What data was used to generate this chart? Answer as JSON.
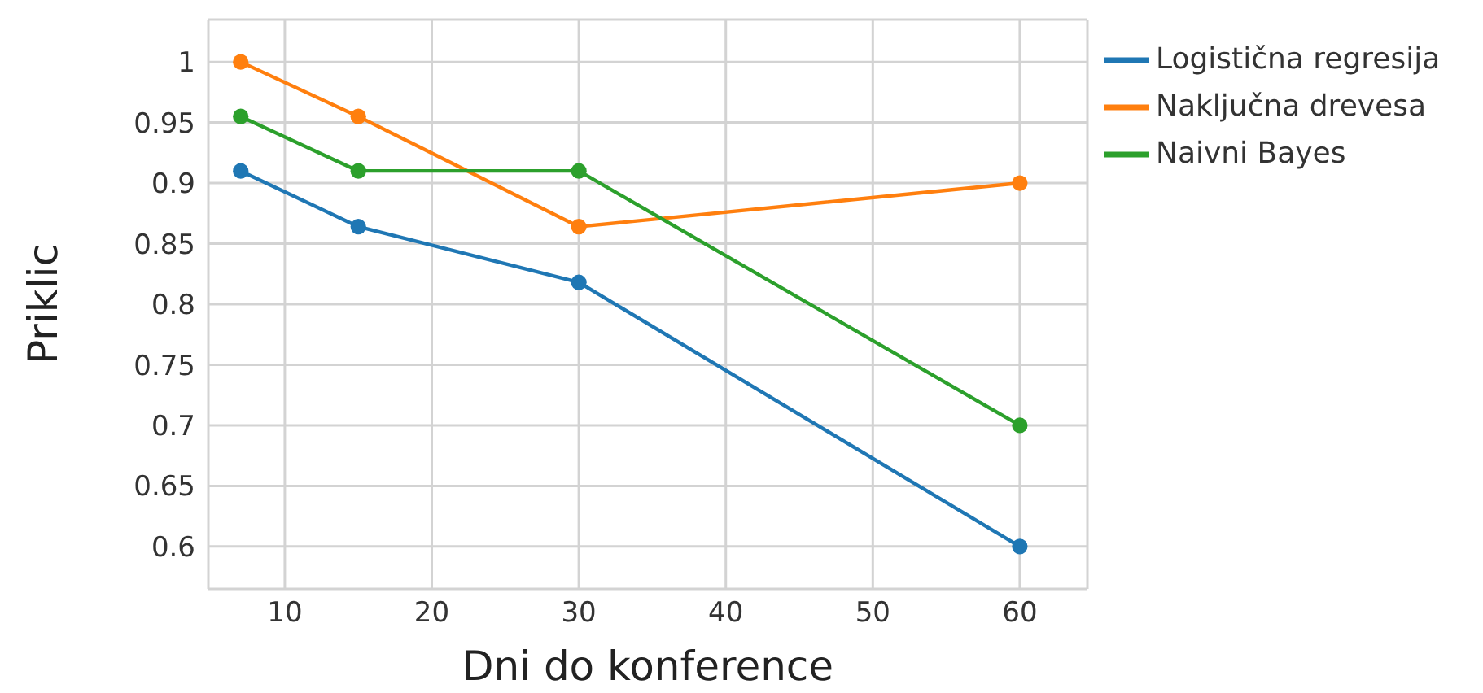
{
  "chart_data": {
    "type": "line",
    "xlabel": "Dni do konference",
    "ylabel": "Priklic",
    "x": [
      7,
      15,
      30,
      60
    ],
    "series": [
      {
        "name": "Logistična regresija",
        "color": "#1f77b4",
        "values": [
          0.91,
          0.864,
          0.818,
          0.6
        ]
      },
      {
        "name": "Naključna drevesa",
        "color": "#ff7f0e",
        "values": [
          1,
          0.955,
          0.864,
          0.9
        ]
      },
      {
        "name": "Naivni Bayes",
        "color": "#2ca02c",
        "values": [
          0.955,
          0.91,
          0.91,
          0.7
        ]
      }
    ],
    "xlim": [
      4.8,
      64.6
    ],
    "xticks": [
      10,
      20,
      30,
      40,
      50,
      60
    ],
    "ylim": [
      0.565,
      1.035
    ],
    "yticks": [
      0.6,
      0.65,
      0.7,
      0.75,
      0.8,
      0.85,
      0.9,
      0.95,
      1
    ],
    "grid": true,
    "legend": "top right",
    "marker": "circle",
    "line_style": "solid"
  }
}
